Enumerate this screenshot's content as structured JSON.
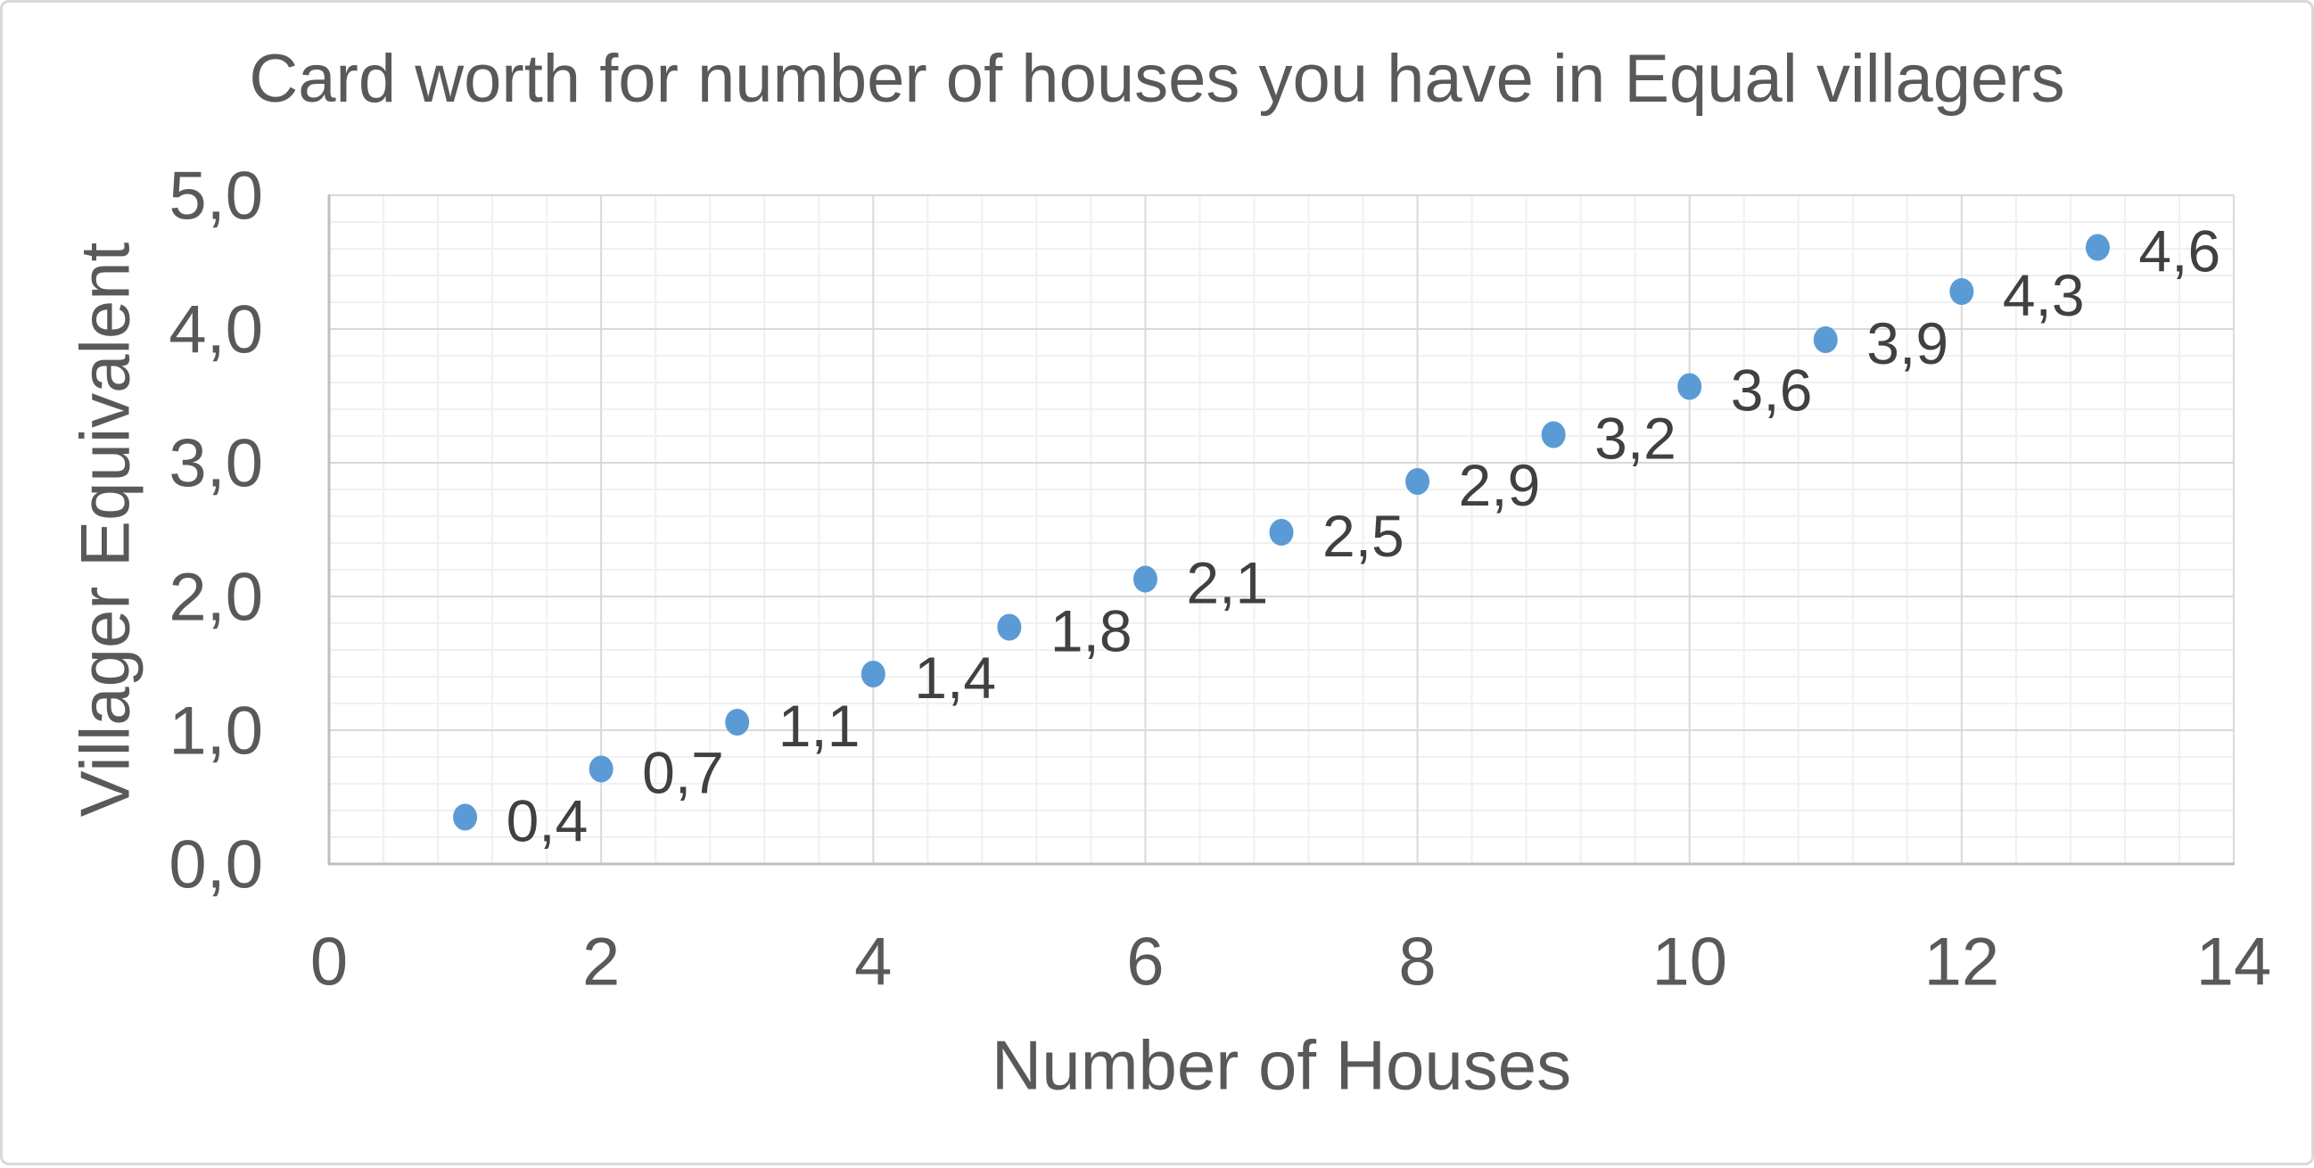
{
  "chart_data": {
    "type": "scatter",
    "title": "Card worth for number of houses you have in Equal villagers",
    "xlabel": "Number of Houses",
    "ylabel": "Villager Equivalent",
    "x": [
      1,
      2,
      3,
      4,
      5,
      6,
      7,
      8,
      9,
      10,
      11,
      12,
      13
    ],
    "y": [
      0.35,
      0.71,
      1.06,
      1.42,
      1.77,
      2.13,
      2.48,
      2.86,
      3.21,
      3.57,
      3.92,
      4.28,
      4.61
    ],
    "point_labels": [
      "0,4",
      "0,7",
      "1,1",
      "1,4",
      "1,8",
      "2,1",
      "2,5",
      "2,9",
      "3,2",
      "3,6",
      "3,9",
      "4,3",
      "4,6"
    ],
    "xlim": [
      0,
      14
    ],
    "ylim": [
      0,
      5
    ],
    "x_ticks": [
      0,
      2,
      4,
      6,
      8,
      10,
      12,
      14
    ],
    "x_tick_labels": [
      "0",
      "2",
      "4",
      "6",
      "8",
      "10",
      "12",
      "14"
    ],
    "y_ticks": [
      0,
      1,
      2,
      3,
      4,
      5
    ],
    "y_tick_labels": [
      "0,0",
      "1,0",
      "2,0",
      "3,0",
      "4,0",
      "5,0"
    ],
    "x_minor_unit": 0.4,
    "y_minor_unit": 0.2,
    "grid": "major and minor gridlines on both axes",
    "legend": "none",
    "colors": {
      "marker": "#5B9BD5",
      "data_label": "#404040",
      "tick_label": "#595959",
      "title": "#595959",
      "axis_title": "#595959",
      "grid_major": "#D9D9D9",
      "grid_minor": "#F0F0F0",
      "axis_line": "#BFBFBF",
      "background": "#FFFFFF",
      "border": "#D9D9D9"
    }
  }
}
